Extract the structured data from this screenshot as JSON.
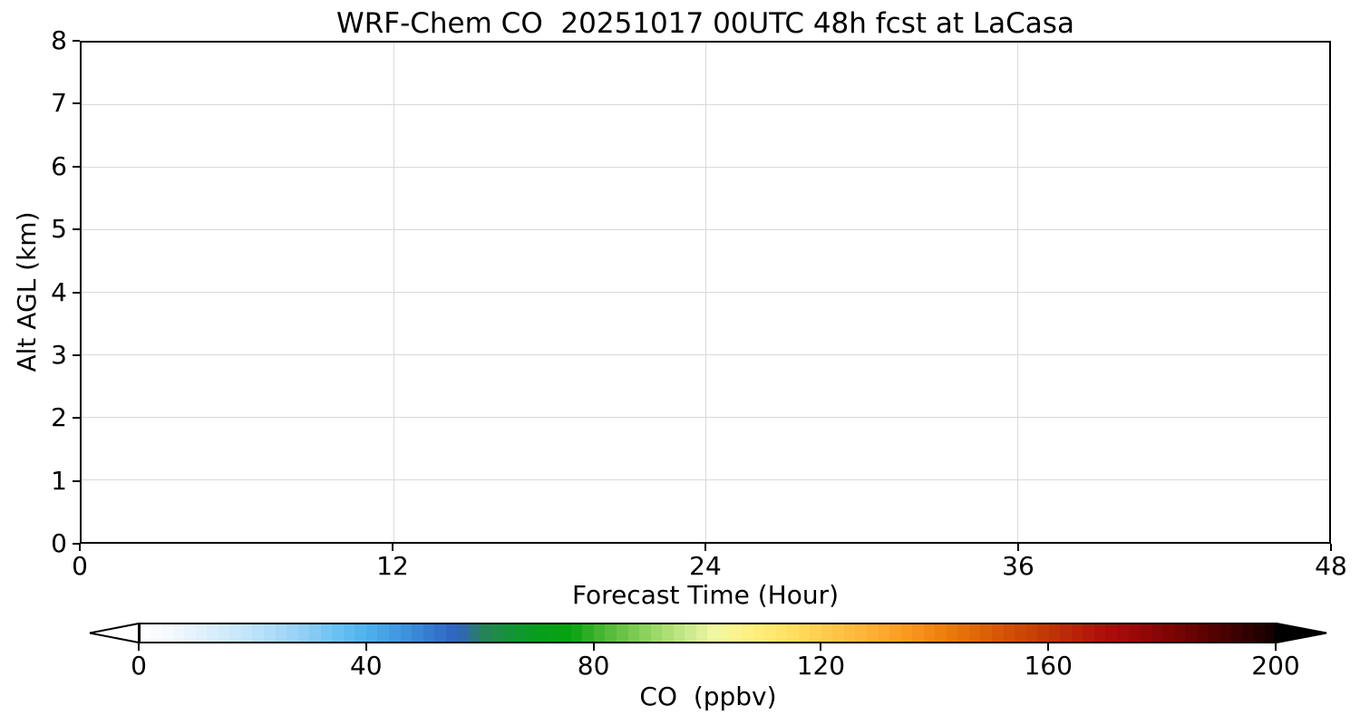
{
  "page": {
    "background": "#ffffff"
  },
  "chart_data": {
    "type": "heatmap",
    "title": "WRF-Chem CO  20251017 00UTC 48h fcst at LaCasa",
    "xlabel": "Forecast Time (Hour)",
    "ylabel": "Alt AGL (km)",
    "xlim": [
      0,
      48
    ],
    "ylim": [
      0,
      8
    ],
    "x_ticks": [
      0,
      12,
      24,
      36,
      48
    ],
    "y_ticks": [
      0,
      1,
      2,
      3,
      4,
      5,
      6,
      7,
      8
    ],
    "x_gridlines": [
      12,
      24,
      36
    ],
    "y_gridlines": [
      1,
      2,
      3,
      4,
      5,
      6,
      7
    ],
    "grid": true,
    "grid_color": "#d9d9d9",
    "field": "blank — plot area renders entirely white (no CO values above the colorbar minimum are shown)",
    "colorbar": {
      "label": "CO  (ppbv)",
      "ticks": [
        0,
        40,
        80,
        120,
        160,
        200
      ],
      "vmin": 0,
      "vmax": 200,
      "extend": "both",
      "extend_min_color": "#ffffff",
      "extend_max_color": "#000000",
      "n_segments": 100,
      "outline_color": "#000000",
      "stops": [
        [
          0,
          "#ffffff"
        ],
        [
          6,
          "#f2f9fe"
        ],
        [
          12,
          "#ddeffc"
        ],
        [
          20,
          "#bfe3fa"
        ],
        [
          28,
          "#97d2f6"
        ],
        [
          34,
          "#6ec4f4"
        ],
        [
          40,
          "#4fb1ee"
        ],
        [
          46,
          "#3f97e0"
        ],
        [
          52,
          "#3377cd"
        ],
        [
          56,
          "#2f62c0"
        ],
        [
          58,
          "#2e6f96"
        ],
        [
          60,
          "#27805c"
        ],
        [
          64,
          "#18903e"
        ],
        [
          70,
          "#079e1c"
        ],
        [
          76,
          "#06a40d"
        ],
        [
          80,
          "#3bb02c"
        ],
        [
          86,
          "#72c74c"
        ],
        [
          92,
          "#a5dc6e"
        ],
        [
          97,
          "#cdeb8e"
        ],
        [
          101,
          "#eff7a2"
        ],
        [
          105,
          "#fbf48e"
        ],
        [
          110,
          "#ffec74"
        ],
        [
          116,
          "#ffdb5e"
        ],
        [
          122,
          "#ffc74a"
        ],
        [
          128,
          "#ffb236"
        ],
        [
          134,
          "#fc9d22"
        ],
        [
          140,
          "#f18511"
        ],
        [
          146,
          "#e36c06"
        ],
        [
          152,
          "#d45303"
        ],
        [
          158,
          "#c53d05"
        ],
        [
          164,
          "#b92508"
        ],
        [
          170,
          "#ab0e0a"
        ],
        [
          176,
          "#960707"
        ],
        [
          182,
          "#7a0404"
        ],
        [
          188,
          "#590202"
        ],
        [
          194,
          "#360101"
        ],
        [
          200,
          "#120000"
        ]
      ]
    }
  }
}
